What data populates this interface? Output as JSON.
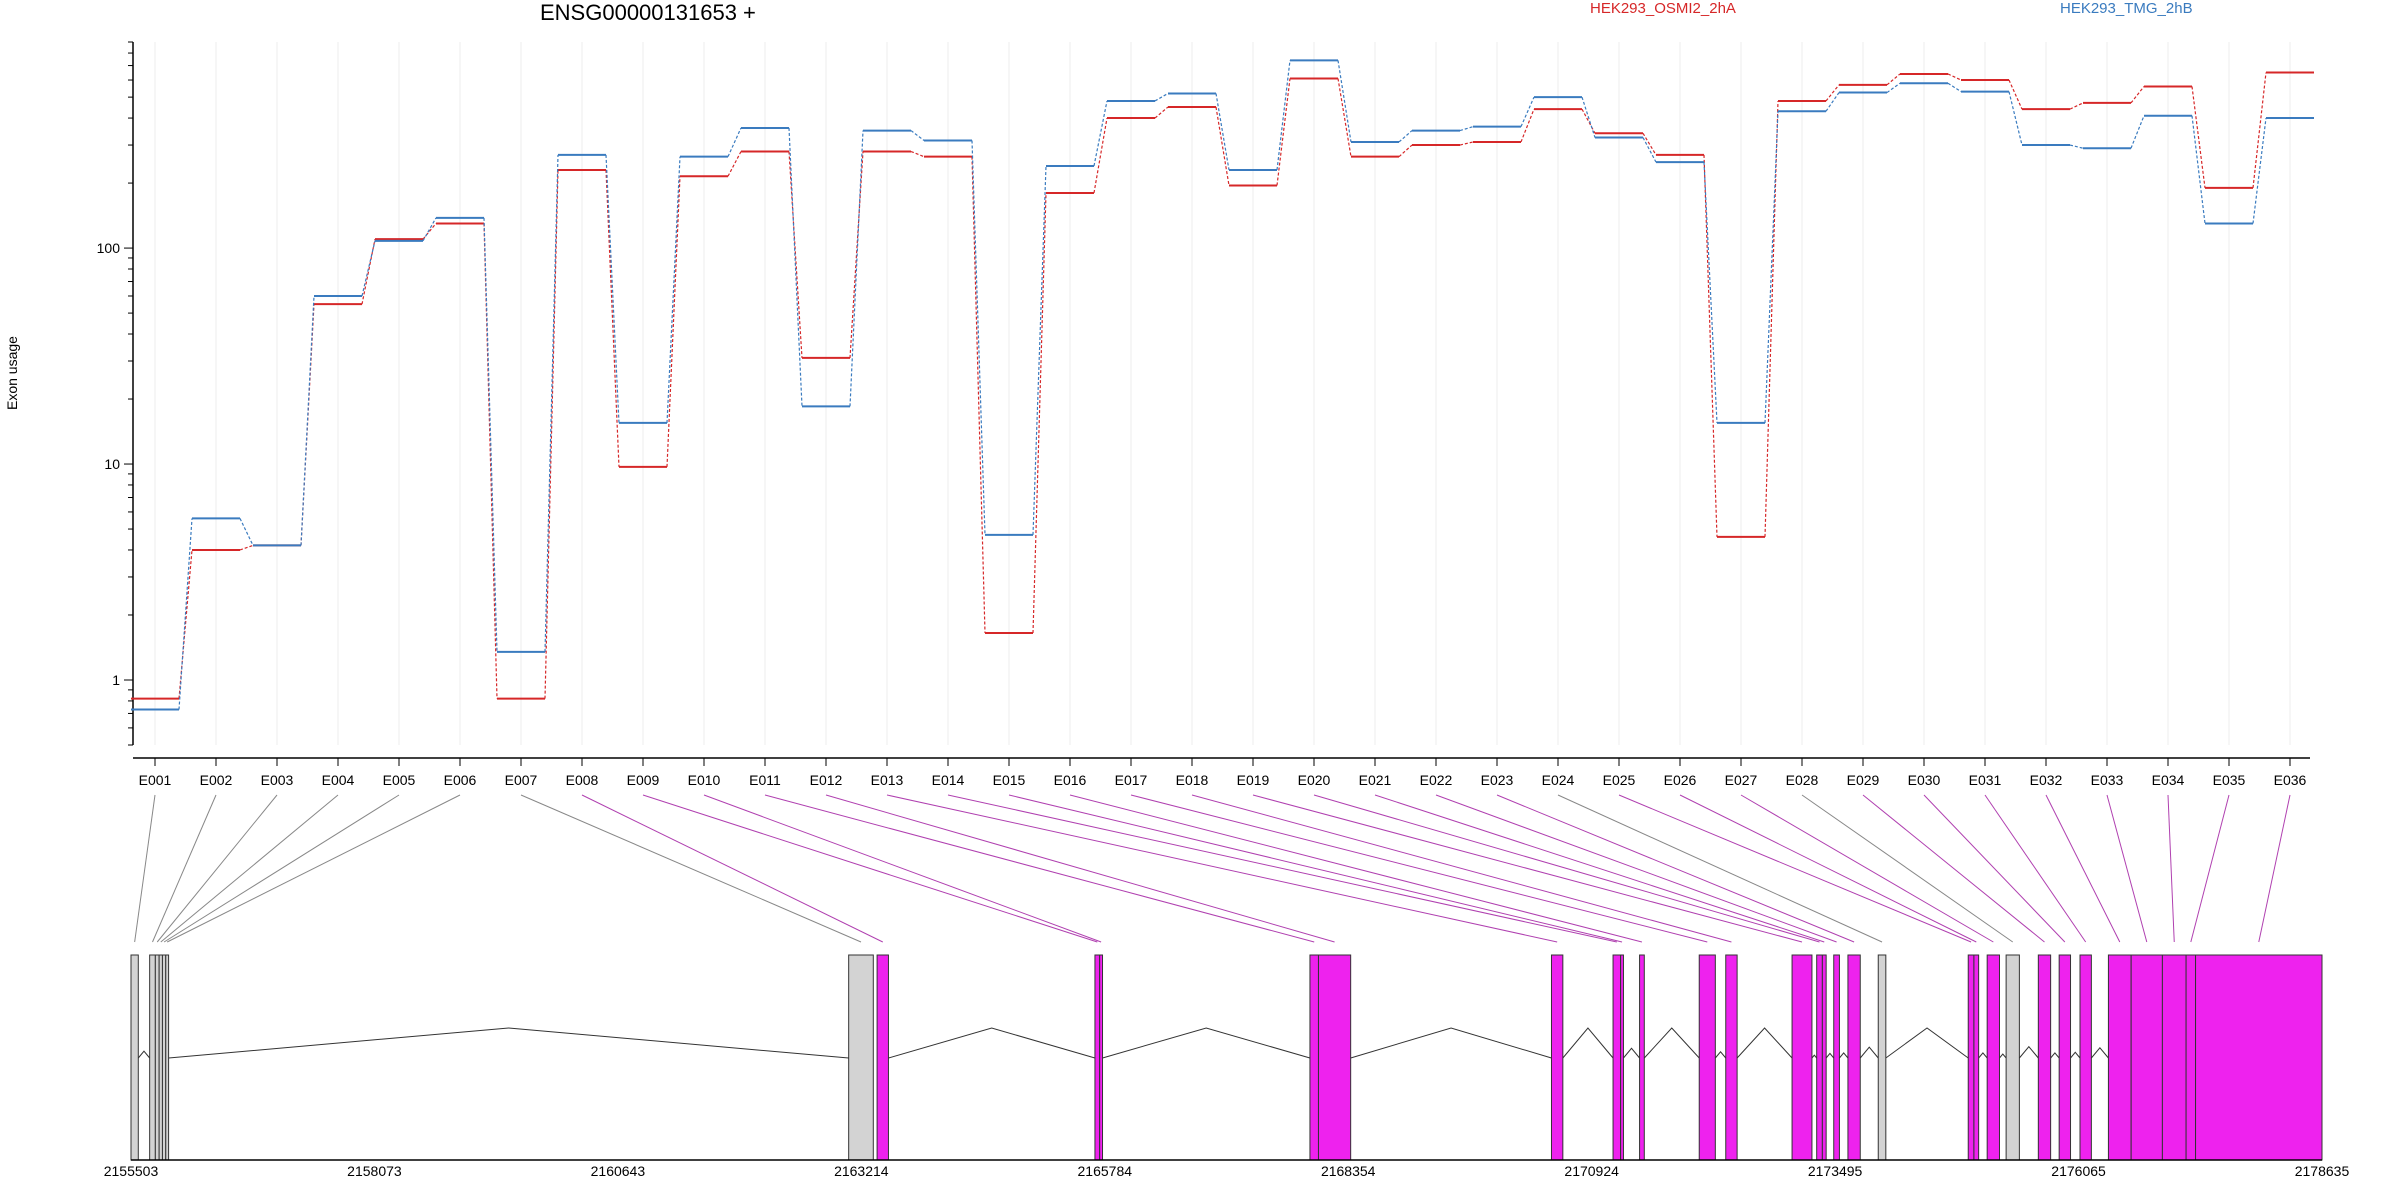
{
  "chart_data": {
    "type": "line",
    "title": "ENSG00000131653 +",
    "ylabel": "Exon usage",
    "yscale": "log",
    "ylim": [
      0.5,
      900
    ],
    "y_ticks": [
      1,
      10,
      100
    ],
    "y_tick_labels": [
      "1",
      "10",
      "100"
    ],
    "categories": [
      "E001",
      "E002",
      "E003",
      "E004",
      "E005",
      "E006",
      "E007",
      "E008",
      "E009",
      "E010",
      "E011",
      "E012",
      "E013",
      "E014",
      "E015",
      "E016",
      "E017",
      "E018",
      "E019",
      "E020",
      "E021",
      "E022",
      "E023",
      "E024",
      "E025",
      "E026",
      "E027",
      "E028",
      "E029",
      "E030",
      "E031",
      "E032",
      "E033",
      "E034",
      "E035",
      "E036"
    ],
    "series": [
      {
        "name": "HEK293_OSMI2_2hA",
        "color": "#d62728",
        "values": [
          0.82,
          4.0,
          4.2,
          55,
          110,
          130,
          0.82,
          230,
          9.7,
          215,
          280,
          31,
          280,
          265,
          1.65,
          180,
          400,
          450,
          195,
          610,
          265,
          300,
          310,
          440,
          340,
          270,
          4.6,
          480,
          570,
          640,
          600,
          440,
          470,
          560,
          190,
          650
        ]
      },
      {
        "name": "HEK293_TMG_2hB",
        "color": "#3a7bbf",
        "values": [
          0.73,
          5.6,
          4.2,
          60,
          108,
          138,
          1.35,
          270,
          15.5,
          265,
          360,
          18.5,
          350,
          315,
          4.7,
          240,
          480,
          520,
          230,
          740,
          310,
          350,
          365,
          500,
          325,
          250,
          15.5,
          430,
          525,
          580,
          530,
          300,
          290,
          410,
          130,
          400
        ]
      }
    ],
    "genomic_axis": {
      "start": 2155503,
      "end": 2178635,
      "tick_labels": [
        "2155503",
        "2158073",
        "2160643",
        "2163214",
        "2165784",
        "2168354",
        "2170924",
        "2173495",
        "2176065",
        "2178635"
      ]
    },
    "exon_blocks": [
      {
        "exon": "E001",
        "start": 2155503,
        "end": 2155580,
        "color": "#d3d3d3"
      },
      {
        "exon": "E002",
        "start": 2155700,
        "end": 2155760,
        "color": "#d3d3d3"
      },
      {
        "exon": "E003",
        "start": 2155760,
        "end": 2155800,
        "color": "#d3d3d3"
      },
      {
        "exon": "E004",
        "start": 2155800,
        "end": 2155835,
        "color": "#d3d3d3"
      },
      {
        "exon": "E005",
        "start": 2155835,
        "end": 2155870,
        "color": "#d3d3d3"
      },
      {
        "exon": "E006",
        "start": 2155870,
        "end": 2155900,
        "color": "#d3d3d3"
      },
      {
        "exon": "E007",
        "start": 2163080,
        "end": 2163340,
        "color": "#d3d3d3"
      },
      {
        "exon": "E008",
        "start": 2163380,
        "end": 2163500,
        "color": "#ee22ee"
      },
      {
        "exon": "E009",
        "start": 2165680,
        "end": 2165730,
        "color": "#ee22ee"
      },
      {
        "exon": "E010",
        "start": 2165730,
        "end": 2165760,
        "color": "#ee22ee"
      },
      {
        "exon": "E011",
        "start": 2167950,
        "end": 2168040,
        "color": "#ee22ee"
      },
      {
        "exon": "E012",
        "start": 2168040,
        "end": 2168380,
        "color": "#ee22ee"
      },
      {
        "exon": "E013",
        "start": 2170500,
        "end": 2170620,
        "color": "#ee22ee"
      },
      {
        "exon": "E014",
        "start": 2171150,
        "end": 2171230,
        "color": "#ee22ee"
      },
      {
        "exon": "E015",
        "start": 2171230,
        "end": 2171260,
        "color": "#ee22ee"
      },
      {
        "exon": "E016",
        "start": 2171430,
        "end": 2171480,
        "color": "#ee22ee"
      },
      {
        "exon": "E017",
        "start": 2172060,
        "end": 2172230,
        "color": "#ee22ee"
      },
      {
        "exon": "E018",
        "start": 2172340,
        "end": 2172460,
        "color": "#ee22ee"
      },
      {
        "exon": "E019",
        "start": 2173040,
        "end": 2173250,
        "color": "#ee22ee"
      },
      {
        "exon": "E020",
        "start": 2173300,
        "end": 2173360,
        "color": "#ee22ee"
      },
      {
        "exon": "E021",
        "start": 2173360,
        "end": 2173400,
        "color": "#ee22ee"
      },
      {
        "exon": "E022",
        "start": 2173480,
        "end": 2173540,
        "color": "#ee22ee"
      },
      {
        "exon": "E023",
        "start": 2173630,
        "end": 2173760,
        "color": "#ee22ee"
      },
      {
        "exon": "E024",
        "start": 2173950,
        "end": 2174030,
        "color": "#d3d3d3"
      },
      {
        "exon": "E025",
        "start": 2174900,
        "end": 2174960,
        "color": "#ee22ee"
      },
      {
        "exon": "E026",
        "start": 2174960,
        "end": 2175010,
        "color": "#ee22ee"
      },
      {
        "exon": "E027",
        "start": 2175100,
        "end": 2175230,
        "color": "#ee22ee"
      },
      {
        "exon": "E028",
        "start": 2175300,
        "end": 2175440,
        "color": "#d3d3d3"
      },
      {
        "exon": "E029",
        "start": 2175640,
        "end": 2175770,
        "color": "#ee22ee"
      },
      {
        "exon": "E030",
        "start": 2175860,
        "end": 2175980,
        "color": "#ee22ee"
      },
      {
        "exon": "E031",
        "start": 2176080,
        "end": 2176200,
        "color": "#ee22ee"
      },
      {
        "exon": "E032",
        "start": 2176380,
        "end": 2176620,
        "color": "#ee22ee"
      },
      {
        "exon": "E033",
        "start": 2176620,
        "end": 2176950,
        "color": "#ee22ee"
      },
      {
        "exon": "E034",
        "start": 2176950,
        "end": 2177200,
        "color": "#ee22ee"
      },
      {
        "exon": "E035",
        "start": 2177200,
        "end": 2177300,
        "color": "#ee22ee"
      },
      {
        "exon": "E036",
        "start": 2177300,
        "end": 2178635,
        "color": "#ee22ee"
      }
    ]
  }
}
